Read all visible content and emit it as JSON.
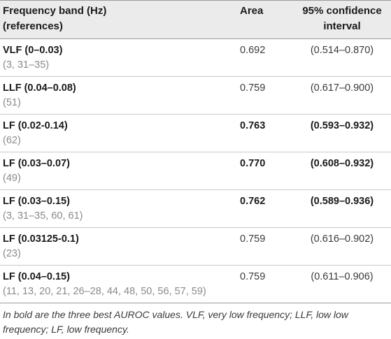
{
  "table": {
    "headers": {
      "band_line1": "Frequency band (Hz)",
      "band_line2": "(references)",
      "area": "Area",
      "ci_line1": "95% confidence",
      "ci_line2": "interval"
    },
    "rows": [
      {
        "band": "VLF (0–0.03)",
        "refs": "(3, 31–35)",
        "area": "0.692",
        "ci": "(0.514–0.870)",
        "best": false
      },
      {
        "band": "LLF (0.04–0.08)",
        "refs": "(51)",
        "area": "0.759",
        "ci": "(0.617–0.900)",
        "best": false
      },
      {
        "band": "LF (0.02-0.14)",
        "refs": "(62)",
        "area": "0.763",
        "ci": "(0.593–0.932)",
        "best": true
      },
      {
        "band": "LF (0.03–0.07)",
        "refs": "(49)",
        "area": "0.770",
        "ci": "(0.608–0.932)",
        "best": true
      },
      {
        "band": "LF (0.03–0.15)",
        "refs": "(3, 31–35, 60, 61)",
        "area": "0.762",
        "ci": "(0.589–0.936)",
        "best": true
      },
      {
        "band": "LF (0.03125-0.1)",
        "refs": "(23)",
        "area": "0.759",
        "ci": "(0.616–0.902)",
        "best": false
      },
      {
        "band": "LF (0.04–0.15)",
        "refs": "(11, 13, 20, 21, 26–28, 44, 48, 50, 56, 57, 59)",
        "area": "0.759",
        "ci": "(0.611–0.906)",
        "best": false
      }
    ]
  },
  "footnote": "In bold are the three best AUROC values. VLF, very low frequency; LLF, low low frequency; LF, low frequency."
}
